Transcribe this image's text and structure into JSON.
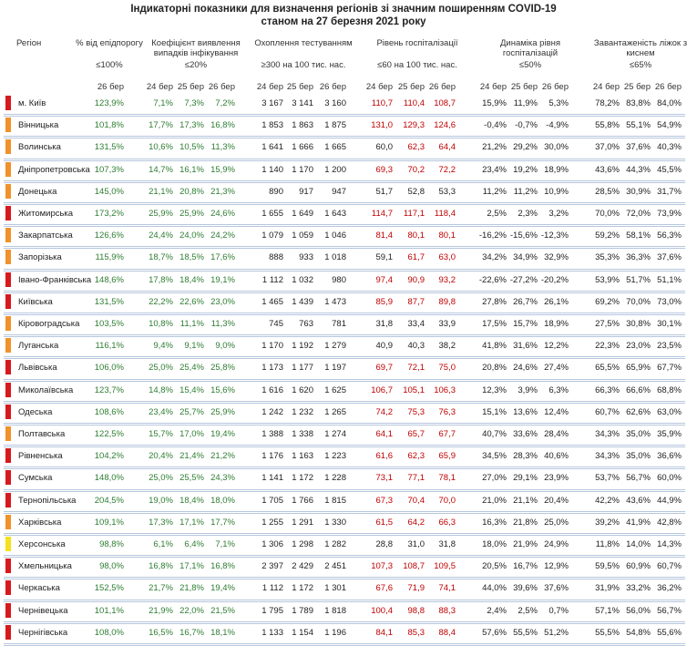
{
  "title": "Індикаторні показники для визначення регіонів зі значним поширенням COVID-19",
  "subtitle": "станом на 27 березня 2021 року",
  "header": {
    "region": "Регіон",
    "groups": [
      {
        "name": "% від епідпорогу",
        "threshold": "≤100%",
        "dates": [
          "26 бер"
        ]
      },
      {
        "name": "Коефіцієнт виявлення випадків інфікування",
        "threshold": "≤20%",
        "dates": [
          "24 бер",
          "25 бер",
          "26 бер"
        ]
      },
      {
        "name": "Охоплення тестуванням",
        "threshold": "≥300 на 100 тис. нас.",
        "dates": [
          "24 бер",
          "25 бер",
          "26 бер"
        ]
      },
      {
        "name": "Рівень госпіталізації",
        "threshold": "≤60 на 100 тис. нас.",
        "dates": [
          "24 бер",
          "25 бер",
          "26 бер"
        ]
      },
      {
        "name": "Динаміка рівня госпіталізацій",
        "threshold": "≤50%",
        "dates": [
          "24 бер",
          "25 бер",
          "26 бер"
        ]
      },
      {
        "name": "Завантаженість ліжок з киснем",
        "threshold": "≤65%",
        "dates": [
          "24 бер",
          "25 бер",
          "26 бер"
        ]
      }
    ]
  },
  "rows": [
    {
      "region": "м. Київ",
      "marker": "#d7191c",
      "cells": [
        "123,9%",
        "7,1%",
        "7,3%",
        "7,2%",
        "3 167",
        "3 141",
        "3 160",
        "110,7",
        "110,4",
        "108,7",
        "15,9%",
        "11,9%",
        "5,3%",
        "78,2%",
        "83,8%",
        "84,0%"
      ],
      "hosp_colors": [
        "#c00000",
        "#c00000",
        "#c00000"
      ]
    },
    {
      "region": "Вінницька",
      "marker": "#f0922b",
      "cells": [
        "101,8%",
        "17,7%",
        "17,3%",
        "16,8%",
        "1 853",
        "1 863",
        "1 875",
        "131,0",
        "129,3",
        "124,6",
        "-0,4%",
        "-0,7%",
        "-4,9%",
        "55,8%",
        "55,1%",
        "54,9%"
      ],
      "hosp_colors": [
        "#c00000",
        "#c00000",
        "#c00000"
      ]
    },
    {
      "region": "Волинська",
      "marker": "#f0922b",
      "cells": [
        "131,5%",
        "10,6%",
        "10,5%",
        "11,3%",
        "1 641",
        "1 666",
        "1 665",
        "60,0",
        "62,3",
        "64,4",
        "21,2%",
        "29,2%",
        "30,0%",
        "37,0%",
        "37,6%",
        "40,3%"
      ],
      "hosp_colors": [
        "#222",
        "#c00000",
        "#c00000"
      ]
    },
    {
      "region": "Дніпропетровська",
      "marker": "#f0922b",
      "cells": [
        "107,3%",
        "14,7%",
        "16,1%",
        "15,9%",
        "1 140",
        "1 170",
        "1 200",
        "69,3",
        "70,2",
        "72,2",
        "23,4%",
        "19,2%",
        "18,9%",
        "43,6%",
        "44,3%",
        "45,5%"
      ],
      "hosp_colors": [
        "#c00000",
        "#c00000",
        "#c00000"
      ]
    },
    {
      "region": "Донецька",
      "marker": "#f0922b",
      "cells": [
        "145,0%",
        "21,1%",
        "20,8%",
        "21,3%",
        "890",
        "917",
        "947",
        "51,7",
        "52,8",
        "53,3",
        "11,2%",
        "11,2%",
        "10,9%",
        "28,5%",
        "30,9%",
        "31,7%"
      ],
      "hosp_colors": [
        "#222",
        "#222",
        "#222"
      ]
    },
    {
      "region": "Житомирська",
      "marker": "#d7191c",
      "cells": [
        "173,2%",
        "25,9%",
        "25,9%",
        "24,6%",
        "1 655",
        "1 649",
        "1 643",
        "114,7",
        "117,1",
        "118,4",
        "2,5%",
        "2,3%",
        "3,2%",
        "70,0%",
        "72,0%",
        "73,9%"
      ],
      "hosp_colors": [
        "#c00000",
        "#c00000",
        "#c00000"
      ]
    },
    {
      "region": "Закарпатська",
      "marker": "#f0922b",
      "cells": [
        "126,6%",
        "24,4%",
        "24,0%",
        "24,2%",
        "1 079",
        "1 059",
        "1 046",
        "81,4",
        "80,1",
        "80,1",
        "-16,2%",
        "-15,6%",
        "-12,3%",
        "59,2%",
        "58,1%",
        "56,3%"
      ],
      "hosp_colors": [
        "#c00000",
        "#c00000",
        "#c00000"
      ]
    },
    {
      "region": "Запорізька",
      "marker": "#f0922b",
      "cells": [
        "115,9%",
        "18,7%",
        "18,5%",
        "17,6%",
        "888",
        "933",
        "1 018",
        "59,1",
        "61,7",
        "63,0",
        "34,2%",
        "34,9%",
        "32,9%",
        "35,3%",
        "36,3%",
        "37,6%"
      ],
      "hosp_colors": [
        "#222",
        "#c00000",
        "#c00000"
      ]
    },
    {
      "region": "Івано-Франківська",
      "marker": "#d7191c",
      "cells": [
        "148,6%",
        "17,8%",
        "18,4%",
        "19,1%",
        "1 112",
        "1 032",
        "980",
        "97,4",
        "90,9",
        "93,2",
        "-22,6%",
        "-27,2%",
        "-20,2%",
        "53,9%",
        "51,7%",
        "51,1%"
      ],
      "hosp_colors": [
        "#c00000",
        "#c00000",
        "#c00000"
      ]
    },
    {
      "region": "Київська",
      "marker": "#d7191c",
      "cells": [
        "131,5%",
        "22,2%",
        "22,6%",
        "23,0%",
        "1 465",
        "1 439",
        "1 473",
        "85,9",
        "87,7",
        "89,8",
        "27,8%",
        "26,7%",
        "26,1%",
        "69,2%",
        "70,0%",
        "73,0%"
      ],
      "hosp_colors": [
        "#c00000",
        "#c00000",
        "#c00000"
      ]
    },
    {
      "region": "Кіровоградська",
      "marker": "#f0922b",
      "cells": [
        "103,5%",
        "10,8%",
        "11,1%",
        "11,3%",
        "745",
        "763",
        "781",
        "31,8",
        "33,4",
        "33,9",
        "17,5%",
        "15,7%",
        "18,9%",
        "27,5%",
        "30,8%",
        "30,1%"
      ],
      "hosp_colors": [
        "#222",
        "#222",
        "#222"
      ]
    },
    {
      "region": "Луганська",
      "marker": "#f0922b",
      "cells": [
        "116,1%",
        "9,4%",
        "9,1%",
        "9,0%",
        "1 170",
        "1 192",
        "1 279",
        "40,9",
        "40,3",
        "38,2",
        "41,8%",
        "31,6%",
        "12,2%",
        "22,3%",
        "23,0%",
        "23,5%"
      ],
      "hosp_colors": [
        "#222",
        "#222",
        "#222"
      ]
    },
    {
      "region": "Львівська",
      "marker": "#d7191c",
      "cells": [
        "106,0%",
        "25,0%",
        "25,4%",
        "25,8%",
        "1 173",
        "1 177",
        "1 197",
        "69,7",
        "72,1",
        "75,0",
        "20,8%",
        "24,6%",
        "27,4%",
        "65,5%",
        "65,9%",
        "67,7%"
      ],
      "hosp_colors": [
        "#c00000",
        "#c00000",
        "#c00000"
      ]
    },
    {
      "region": "Миколаївська",
      "marker": "#d7191c",
      "cells": [
        "123,7%",
        "14,8%",
        "15,4%",
        "15,6%",
        "1 616",
        "1 620",
        "1 625",
        "106,7",
        "105,1",
        "106,3",
        "12,3%",
        "3,9%",
        "6,3%",
        "66,3%",
        "66,6%",
        "68,8%"
      ],
      "hosp_colors": [
        "#c00000",
        "#c00000",
        "#c00000"
      ]
    },
    {
      "region": "Одеська",
      "marker": "#d7191c",
      "cells": [
        "108,6%",
        "23,4%",
        "25,7%",
        "25,9%",
        "1 242",
        "1 232",
        "1 265",
        "74,2",
        "75,3",
        "76,3",
        "15,1%",
        "13,6%",
        "12,4%",
        "60,7%",
        "62,6%",
        "63,0%"
      ],
      "hosp_colors": [
        "#c00000",
        "#c00000",
        "#c00000"
      ]
    },
    {
      "region": "Полтавська",
      "marker": "#f0922b",
      "cells": [
        "122,5%",
        "15,7%",
        "17,0%",
        "19,4%",
        "1 388",
        "1 338",
        "1 274",
        "64,1",
        "65,7",
        "67,7",
        "40,7%",
        "33,6%",
        "28,4%",
        "34,3%",
        "35,0%",
        "35,9%"
      ],
      "hosp_colors": [
        "#c00000",
        "#c00000",
        "#c00000"
      ]
    },
    {
      "region": "Рівненська",
      "marker": "#d7191c",
      "cells": [
        "104,2%",
        "20,4%",
        "21,4%",
        "21,2%",
        "1 176",
        "1 163",
        "1 223",
        "61,6",
        "62,3",
        "65,9",
        "34,5%",
        "28,3%",
        "40,6%",
        "34,3%",
        "35,0%",
        "36,6%"
      ],
      "hosp_colors": [
        "#c00000",
        "#c00000",
        "#c00000"
      ]
    },
    {
      "region": "Сумська",
      "marker": "#d7191c",
      "cells": [
        "148,0%",
        "25,0%",
        "25,5%",
        "24,3%",
        "1 141",
        "1 172",
        "1 228",
        "73,1",
        "77,1",
        "78,1",
        "27,0%",
        "29,1%",
        "23,9%",
        "53,7%",
        "56,7%",
        "60,0%"
      ],
      "hosp_colors": [
        "#c00000",
        "#c00000",
        "#c00000"
      ]
    },
    {
      "region": "Тернопільська",
      "marker": "#d7191c",
      "cells": [
        "204,5%",
        "19,0%",
        "18,4%",
        "18,0%",
        "1 705",
        "1 766",
        "1 815",
        "67,3",
        "70,4",
        "70,0",
        "21,0%",
        "21,1%",
        "20,4%",
        "42,2%",
        "43,6%",
        "44,9%"
      ],
      "hosp_colors": [
        "#c00000",
        "#c00000",
        "#c00000"
      ]
    },
    {
      "region": "Харківська",
      "marker": "#f0922b",
      "cells": [
        "109,1%",
        "17,3%",
        "17,1%",
        "17,7%",
        "1 255",
        "1 291",
        "1 330",
        "61,5",
        "64,2",
        "66,3",
        "16,3%",
        "21,8%",
        "25,0%",
        "39,2%",
        "41,9%",
        "42,8%"
      ],
      "hosp_colors": [
        "#c00000",
        "#c00000",
        "#c00000"
      ]
    },
    {
      "region": "Херсонська",
      "marker": "#f5e11c",
      "cells": [
        "98,8%",
        "6,1%",
        "6,4%",
        "7,1%",
        "1 306",
        "1 298",
        "1 282",
        "28,8",
        "31,0",
        "31,8",
        "18,0%",
        "21,9%",
        "24,9%",
        "11,8%",
        "14,0%",
        "14,3%"
      ],
      "hosp_colors": [
        "#222",
        "#222",
        "#222"
      ]
    },
    {
      "region": "Хмельницька",
      "marker": "#d7191c",
      "cells": [
        "98,0%",
        "16,8%",
        "17,1%",
        "16,8%",
        "2 397",
        "2 429",
        "2 451",
        "107,3",
        "108,7",
        "109,5",
        "20,5%",
        "16,7%",
        "12,9%",
        "59,5%",
        "60,9%",
        "60,7%"
      ],
      "hosp_colors": [
        "#c00000",
        "#c00000",
        "#c00000"
      ]
    },
    {
      "region": "Черкаська",
      "marker": "#d7191c",
      "cells": [
        "152,5%",
        "21,7%",
        "21,8%",
        "19,4%",
        "1 112",
        "1 172",
        "1 301",
        "67,6",
        "71,9",
        "74,1",
        "44,0%",
        "39,6%",
        "37,6%",
        "31,9%",
        "33,2%",
        "36,2%"
      ],
      "hosp_colors": [
        "#c00000",
        "#c00000",
        "#c00000"
      ]
    },
    {
      "region": "Чернівецька",
      "marker": "#d7191c",
      "cells": [
        "101,1%",
        "21,9%",
        "22,0%",
        "21,5%",
        "1 795",
        "1 789",
        "1 818",
        "100,4",
        "98,8",
        "88,3",
        "2,4%",
        "2,5%",
        "0,7%",
        "57,1%",
        "56,0%",
        "56,7%"
      ],
      "hosp_colors": [
        "#c00000",
        "#c00000",
        "#c00000"
      ]
    },
    {
      "region": "Чернігівська",
      "marker": "#d7191c",
      "cells": [
        "108,0%",
        "16,5%",
        "16,7%",
        "18,1%",
        "1 133",
        "1 154",
        "1 196",
        "84,1",
        "85,3",
        "88,4",
        "57,6%",
        "55,5%",
        "51,2%",
        "55,5%",
        "54,8%",
        "55,6%"
      ],
      "hosp_colors": [
        "#c00000",
        "#c00000",
        "#c00000"
      ]
    }
  ],
  "green_color": "#2e7d32"
}
